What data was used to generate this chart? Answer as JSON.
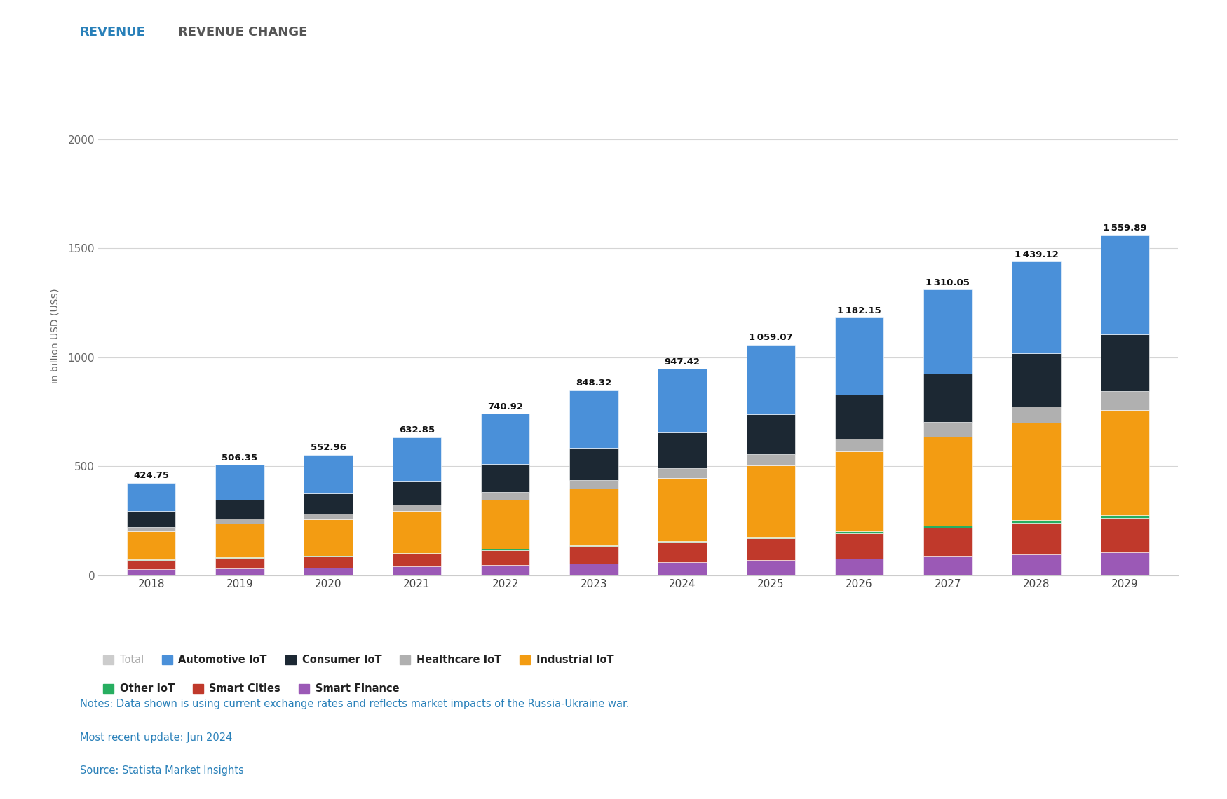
{
  "years": [
    2018,
    2019,
    2020,
    2021,
    2022,
    2023,
    2024,
    2025,
    2026,
    2027,
    2028,
    2029
  ],
  "totals": [
    424.75,
    506.35,
    552.96,
    632.85,
    740.92,
    848.32,
    947.42,
    1059.07,
    1182.15,
    1310.05,
    1439.12,
    1559.89
  ],
  "segments": {
    "Smart Finance": [
      28,
      32,
      35,
      40,
      48,
      55,
      62,
      70,
      78,
      87,
      96,
      105
    ],
    "Smart Cities": [
      42,
      48,
      52,
      60,
      68,
      78,
      88,
      100,
      115,
      130,
      145,
      158
    ],
    "Other IoT": [
      2,
      2,
      3,
      3,
      4,
      5,
      6,
      7,
      8,
      10,
      11,
      12
    ],
    "Industrial IoT": [
      130,
      155,
      168,
      193,
      228,
      260,
      290,
      328,
      367,
      408,
      448,
      485
    ],
    "Healthcare IoT": [
      18,
      22,
      24,
      28,
      34,
      40,
      46,
      52,
      60,
      68,
      76,
      84
    ],
    "Consumer IoT": [
      75,
      88,
      95,
      108,
      128,
      148,
      163,
      182,
      202,
      222,
      243,
      262
    ],
    "Automotive IoT": [
      129.75,
      159.35,
      175.96,
      200.85,
      230.92,
      262.32,
      292.42,
      320.07,
      352.15,
      385.05,
      420.12,
      453.89
    ]
  },
  "colors": {
    "Smart Finance": "#9b59b6",
    "Smart Cities": "#c0392b",
    "Other IoT": "#27ae60",
    "Industrial IoT": "#f39c12",
    "Healthcare IoT": "#b0b0b0",
    "Consumer IoT": "#1c2833",
    "Automotive IoT": "#4a90d9"
  },
  "segment_order": [
    "Smart Finance",
    "Smart Cities",
    "Other IoT",
    "Industrial IoT",
    "Healthcare IoT",
    "Consumer IoT",
    "Automotive IoT"
  ],
  "ylabel": "in billion USD (US$)",
  "ylim": [
    0,
    2200
  ],
  "yticks": [
    0,
    500,
    1000,
    1500,
    2000
  ],
  "tab1": "REVENUE",
  "tab2": "REVENUE CHANGE",
  "note1": "Notes: Data shown is using current exchange rates and reflects market impacts of the Russia-Ukraine war.",
  "note2": "Most recent update: Jun 2024",
  "note3": "Source: Statista Market Insights",
  "bg_color": "#ffffff",
  "grid_color": "#d5d5d5",
  "tab_active_color": "#2980b9",
  "tab_inactive_color": "#555555",
  "note_color": "#2980b9",
  "total_label_color": "#111111",
  "legend_row1": [
    {
      "label": "Total",
      "color": "#cccccc",
      "gray": true
    },
    {
      "label": "Automotive IoT",
      "color": "#4a90d9",
      "gray": false
    },
    {
      "label": "Consumer IoT",
      "color": "#1c2833",
      "gray": false
    },
    {
      "label": "Healthcare IoT",
      "color": "#b0b0b0",
      "gray": false
    },
    {
      "label": "Industrial IoT",
      "color": "#f39c12",
      "gray": false
    }
  ],
  "legend_row2": [
    {
      "label": "Other IoT",
      "color": "#27ae60",
      "gray": false
    },
    {
      "label": "Smart Cities",
      "color": "#c0392b",
      "gray": false
    },
    {
      "label": "Smart Finance",
      "color": "#9b59b6",
      "gray": false
    }
  ]
}
